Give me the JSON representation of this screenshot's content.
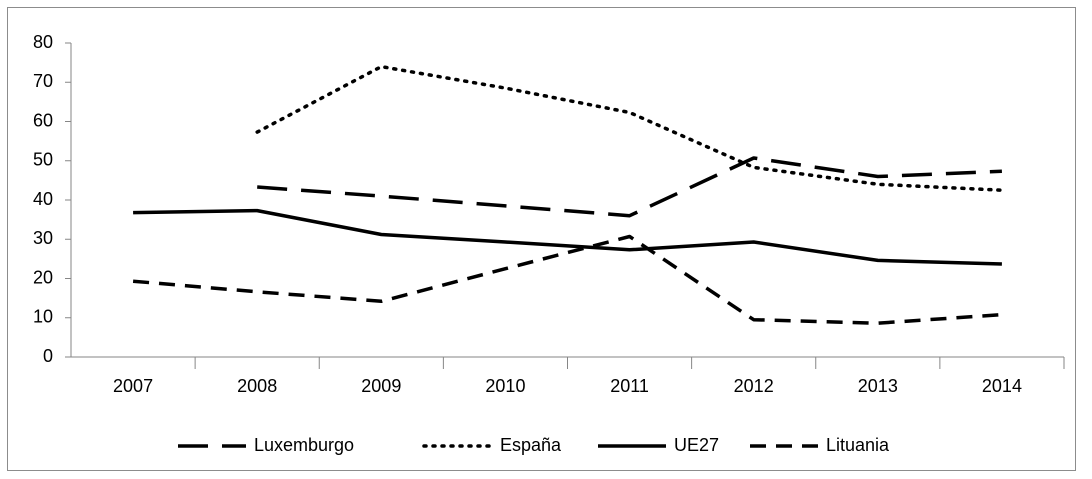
{
  "chart_data": {
    "type": "line",
    "categories": [
      "2007",
      "2008",
      "2009",
      "2010",
      "2011",
      "2012",
      "2013",
      "2014"
    ],
    "series": [
      {
        "name": "Luxemburgo",
        "color": "#000000",
        "dash": "longdash",
        "values": [
          null,
          43.3,
          41,
          38.5,
          36,
          50.7,
          46,
          47.3
        ]
      },
      {
        "name": "España",
        "color": "#000000",
        "dash": "dot",
        "values": [
          null,
          57.3,
          74,
          68.5,
          62.3,
          48.3,
          44,
          42.5
        ]
      },
      {
        "name": "UE27",
        "color": "#000000",
        "dash": "solid",
        "values": [
          36.8,
          37.3,
          31.2,
          29.3,
          27.3,
          29.3,
          24.6,
          23.7
        ]
      },
      {
        "name": "Lituania",
        "color": "#000000",
        "dash": "dash",
        "values": [
          19.3,
          16.6,
          14.2,
          22.5,
          30.7,
          9.5,
          8.6,
          10.8
        ]
      }
    ],
    "ylim": [
      0,
      80
    ],
    "yticks": [
      0,
      10,
      20,
      30,
      40,
      50,
      60,
      70,
      80
    ],
    "grid": false,
    "legend": "bottom"
  }
}
